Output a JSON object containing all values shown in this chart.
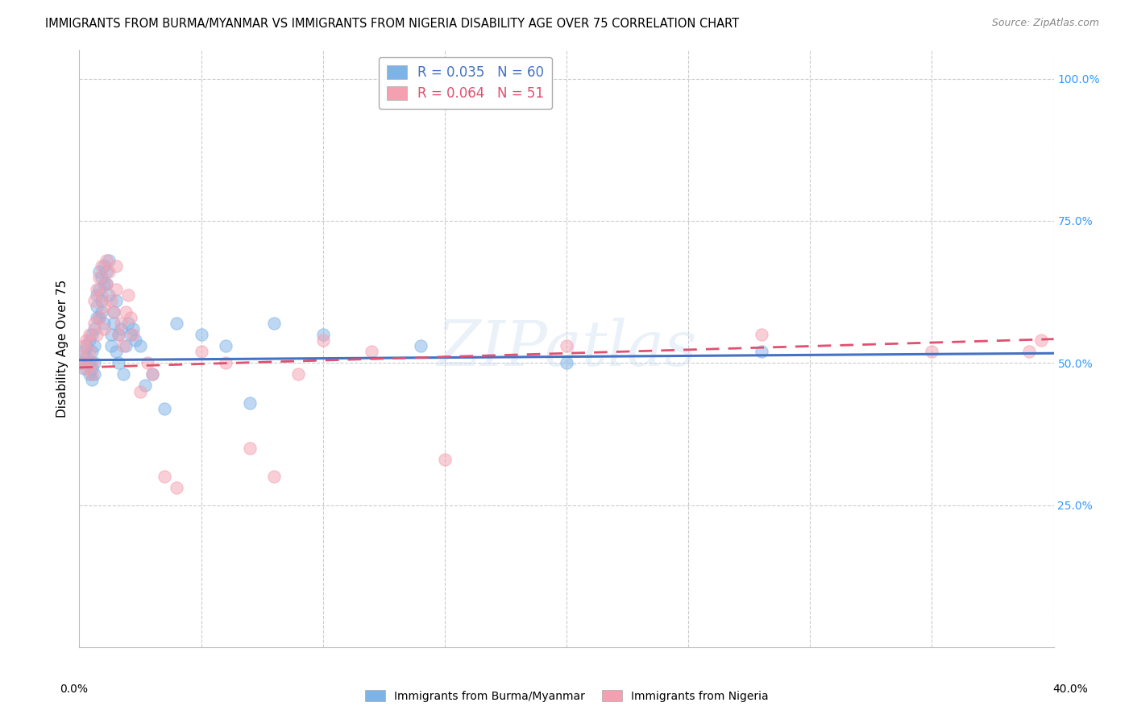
{
  "title": "IMMIGRANTS FROM BURMA/MYANMAR VS IMMIGRANTS FROM NIGERIA DISABILITY AGE OVER 75 CORRELATION CHART",
  "source": "Source: ZipAtlas.com",
  "ylabel": "Disability Age Over 75",
  "xlim": [
    0.0,
    0.4
  ],
  "ylim": [
    0.0,
    1.05
  ],
  "watermark": "ZIPatlas",
  "legend_r1": "R = 0.035",
  "legend_n1": "N = 60",
  "legend_r2": "R = 0.064",
  "legend_n2": "N = 51",
  "blue_color": "#7EB3E8",
  "pink_color": "#F4A0B0",
  "blue_line_color": "#4472C4",
  "pink_line_color": "#E05070",
  "scatter_alpha": 0.5,
  "scatter_size": 120,
  "blue_x": [
    0.001,
    0.002,
    0.002,
    0.003,
    0.003,
    0.004,
    0.004,
    0.004,
    0.005,
    0.005,
    0.005,
    0.005,
    0.006,
    0.006,
    0.006,
    0.006,
    0.007,
    0.007,
    0.007,
    0.008,
    0.008,
    0.008,
    0.009,
    0.009,
    0.009,
    0.01,
    0.01,
    0.01,
    0.011,
    0.011,
    0.012,
    0.012,
    0.013,
    0.013,
    0.014,
    0.014,
    0.015,
    0.015,
    0.016,
    0.016,
    0.017,
    0.018,
    0.019,
    0.02,
    0.021,
    0.022,
    0.023,
    0.025,
    0.027,
    0.03,
    0.035,
    0.04,
    0.05,
    0.06,
    0.07,
    0.08,
    0.1,
    0.14,
    0.2,
    0.28
  ],
  "blue_y": [
    0.5,
    0.52,
    0.49,
    0.51,
    0.53,
    0.48,
    0.5,
    0.54,
    0.55,
    0.49,
    0.47,
    0.52,
    0.56,
    0.5,
    0.48,
    0.53,
    0.62,
    0.6,
    0.58,
    0.66,
    0.63,
    0.58,
    0.65,
    0.59,
    0.61,
    0.67,
    0.64,
    0.57,
    0.64,
    0.66,
    0.68,
    0.62,
    0.55,
    0.53,
    0.57,
    0.59,
    0.61,
    0.52,
    0.55,
    0.5,
    0.56,
    0.48,
    0.53,
    0.57,
    0.55,
    0.56,
    0.54,
    0.53,
    0.46,
    0.48,
    0.42,
    0.57,
    0.55,
    0.53,
    0.43,
    0.57,
    0.55,
    0.53,
    0.5,
    0.52
  ],
  "pink_x": [
    0.001,
    0.002,
    0.002,
    0.003,
    0.003,
    0.004,
    0.004,
    0.005,
    0.005,
    0.006,
    0.006,
    0.007,
    0.007,
    0.008,
    0.008,
    0.009,
    0.009,
    0.01,
    0.01,
    0.011,
    0.011,
    0.012,
    0.013,
    0.014,
    0.015,
    0.015,
    0.016,
    0.017,
    0.018,
    0.019,
    0.02,
    0.021,
    0.022,
    0.025,
    0.028,
    0.03,
    0.035,
    0.04,
    0.05,
    0.06,
    0.07,
    0.08,
    0.09,
    0.1,
    0.12,
    0.15,
    0.2,
    0.28,
    0.35,
    0.39,
    0.395
  ],
  "pink_y": [
    0.51,
    0.5,
    0.53,
    0.49,
    0.54,
    0.52,
    0.55,
    0.5,
    0.48,
    0.57,
    0.61,
    0.55,
    0.63,
    0.58,
    0.65,
    0.67,
    0.62,
    0.6,
    0.56,
    0.64,
    0.68,
    0.66,
    0.61,
    0.59,
    0.67,
    0.63,
    0.55,
    0.57,
    0.53,
    0.59,
    0.62,
    0.58,
    0.55,
    0.45,
    0.5,
    0.48,
    0.3,
    0.28,
    0.52,
    0.5,
    0.35,
    0.3,
    0.48,
    0.54,
    0.52,
    0.33,
    0.53,
    0.55,
    0.52,
    0.52,
    0.54
  ],
  "right_ytick_color": "#3399FF",
  "grid_color": "#CCCCCC"
}
